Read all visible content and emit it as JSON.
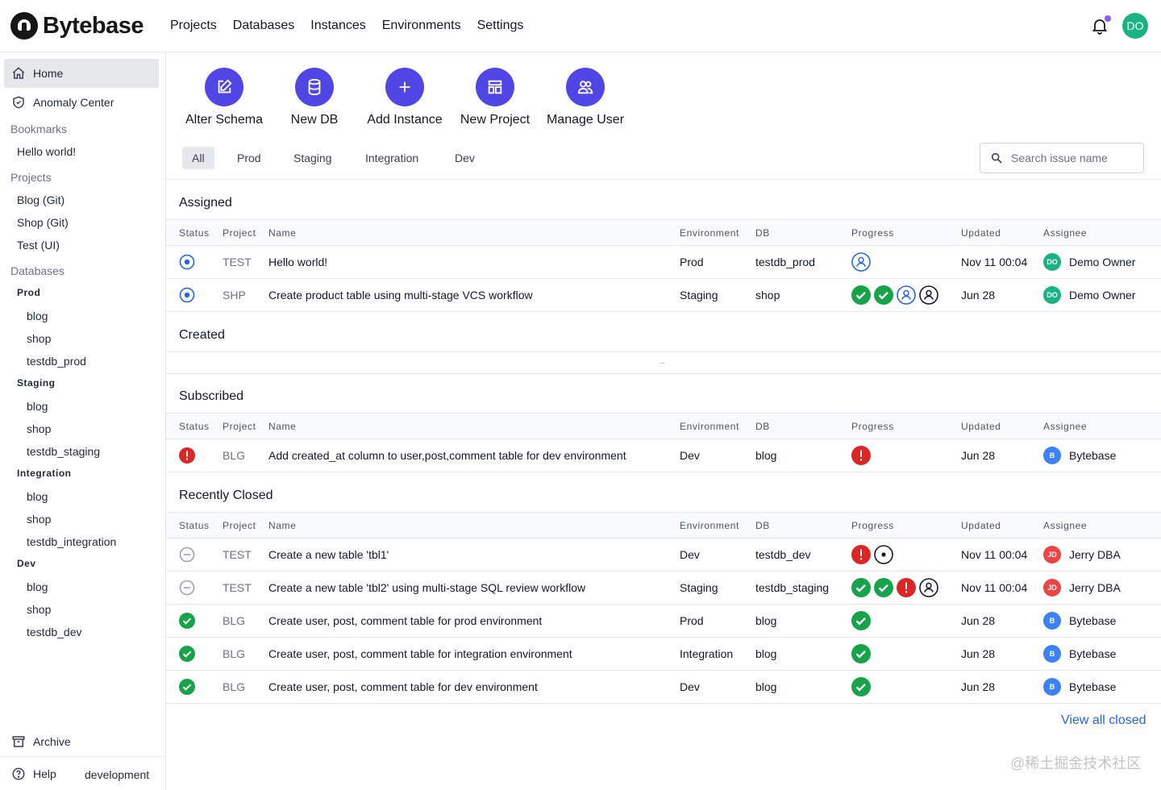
{
  "brand": {
    "name": "Bytebase"
  },
  "nav": [
    "Projects",
    "Databases",
    "Instances",
    "Environments",
    "Settings"
  ],
  "user": {
    "initials": "DO"
  },
  "sidebar": {
    "home": "Home",
    "anomaly": "Anomaly Center",
    "bookmarks_title": "Bookmarks",
    "bookmarks": [
      "Hello world!"
    ],
    "projects_title": "Projects",
    "projects": [
      "Blog (Git)",
      "Shop (Git)",
      "Test (UI)"
    ],
    "databases_title": "Databases",
    "envs": [
      {
        "name": "Prod",
        "dbs": [
          "blog",
          "shop",
          "testdb_prod"
        ]
      },
      {
        "name": "Staging",
        "dbs": [
          "blog",
          "shop",
          "testdb_staging"
        ]
      },
      {
        "name": "Integration",
        "dbs": [
          "blog",
          "shop",
          "testdb_integration"
        ]
      },
      {
        "name": "Dev",
        "dbs": [
          "blog",
          "shop",
          "testdb_dev"
        ]
      }
    ],
    "archive": "Archive",
    "help": "Help",
    "env_label": "development"
  },
  "quick_actions": [
    "Alter Schema",
    "New DB",
    "Add Instance",
    "New Project",
    "Manage User"
  ],
  "tabs": [
    "All",
    "Prod",
    "Staging",
    "Integration",
    "Dev"
  ],
  "search": {
    "placeholder": "Search issue name"
  },
  "columns": [
    "Status",
    "Project",
    "Name",
    "Environment",
    "DB",
    "Progress",
    "Updated",
    "Assignee"
  ],
  "sections": {
    "assigned": {
      "title": "Assigned",
      "rows": [
        {
          "status": "open",
          "project": "TEST",
          "name": "Hello world!",
          "env": "Prod",
          "db": "testdb_prod",
          "progress": [
            "pending-user"
          ],
          "updated": "Nov 11 00:04",
          "assignee": "Demo Owner",
          "initials": "DO",
          "avatar_color": "#18b383"
        },
        {
          "status": "open",
          "project": "SHP",
          "name": "Create product table using multi-stage VCS workflow",
          "env": "Staging",
          "db": "shop",
          "progress": [
            "done",
            "done",
            "pending-user",
            "user"
          ],
          "updated": "Jun 28",
          "assignee": "Demo Owner",
          "initials": "DO",
          "avatar_color": "#18b383"
        }
      ]
    },
    "created": {
      "title": "Created",
      "empty": "–"
    },
    "subscribed": {
      "title": "Subscribed",
      "rows": [
        {
          "status": "error",
          "project": "BLG",
          "name": "Add created_at column to user,post,comment table for dev environment",
          "env": "Dev",
          "db": "blog",
          "progress": [
            "error"
          ],
          "updated": "Jun 28",
          "assignee": "Bytebase",
          "initials": "B",
          "avatar_color": "#3b82f6"
        }
      ]
    },
    "closed": {
      "title": "Recently Closed",
      "rows": [
        {
          "status": "canceled",
          "project": "TEST",
          "name": "Create a new table 'tbl1'",
          "env": "Dev",
          "db": "testdb_dev",
          "progress": [
            "error",
            "dot"
          ],
          "updated": "Nov 11 00:04",
          "assignee": "Jerry DBA",
          "initials": "JD",
          "avatar_color": "#ef4444"
        },
        {
          "status": "canceled",
          "project": "TEST",
          "name": "Create a new table 'tbl2' using multi-stage SQL review workflow",
          "env": "Staging",
          "db": "testdb_staging",
          "progress": [
            "done",
            "done",
            "error",
            "user"
          ],
          "updated": "Nov 11 00:04",
          "assignee": "Jerry DBA",
          "initials": "JD",
          "avatar_color": "#ef4444"
        },
        {
          "status": "done",
          "project": "BLG",
          "name": "Create user, post, comment table for prod environment",
          "env": "Prod",
          "db": "blog",
          "progress": [
            "done"
          ],
          "updated": "Jun 28",
          "assignee": "Bytebase",
          "initials": "B",
          "avatar_color": "#3b82f6"
        },
        {
          "status": "done",
          "project": "BLG",
          "name": "Create user, post, comment table for integration environment",
          "env": "Integration",
          "db": "blog",
          "progress": [
            "done"
          ],
          "updated": "Jun 28",
          "assignee": "Bytebase",
          "initials": "B",
          "avatar_color": "#3b82f6"
        },
        {
          "status": "done",
          "project": "BLG",
          "name": "Create user, post, comment table for dev environment",
          "env": "Dev",
          "db": "blog",
          "progress": [
            "done"
          ],
          "updated": "Jun 28",
          "assignee": "Bytebase",
          "initials": "B",
          "avatar_color": "#3b82f6"
        }
      ]
    }
  },
  "view_all_closed": "View all closed",
  "watermark": "@稀土掘金技术社区"
}
